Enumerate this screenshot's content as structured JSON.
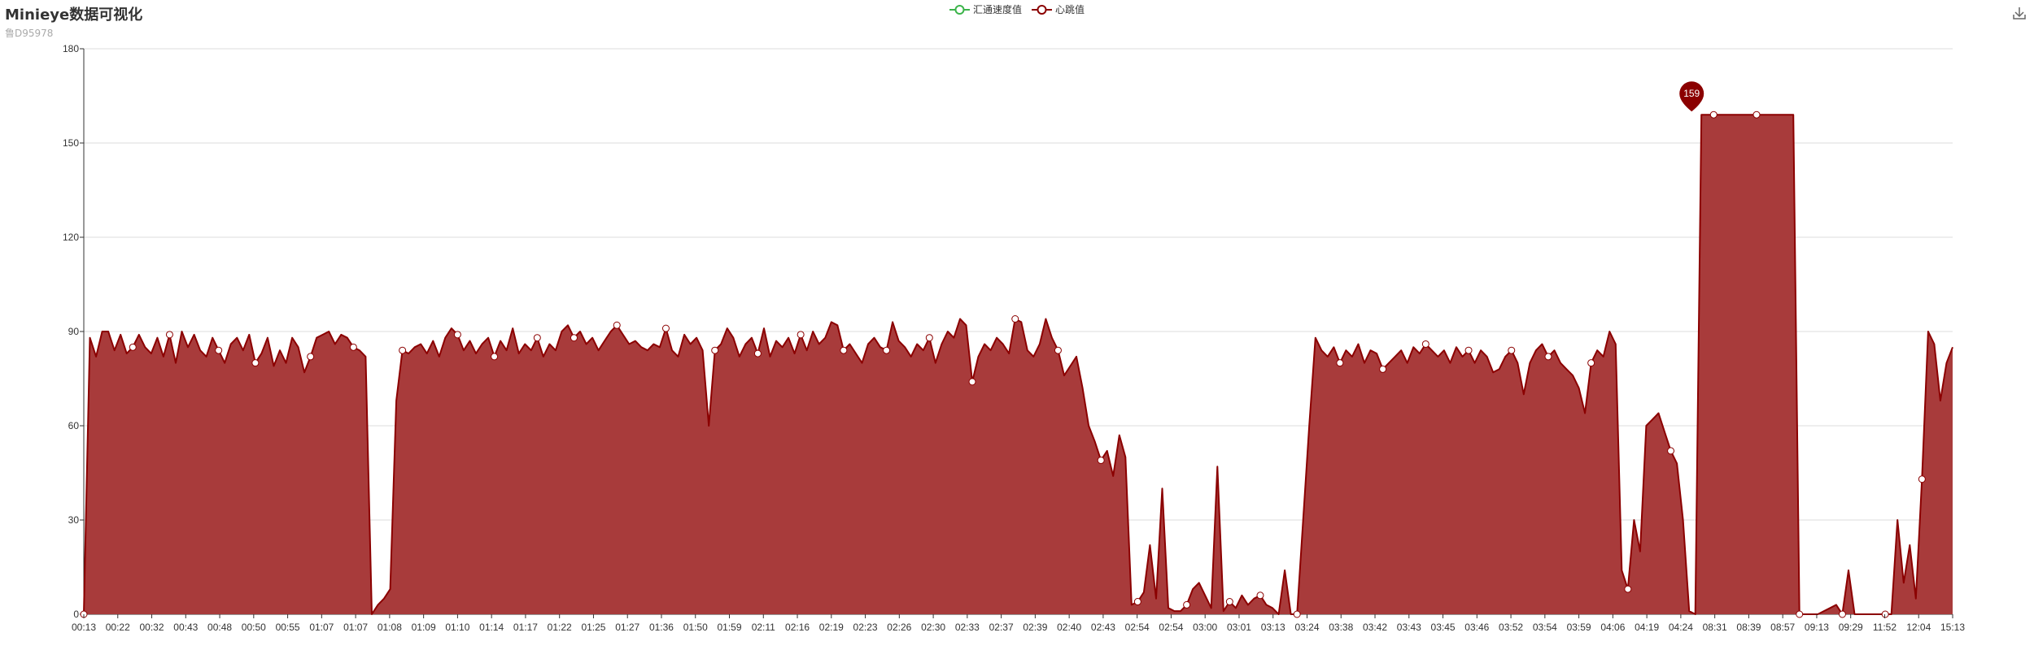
{
  "header": {
    "title": "Minieye数据可视化",
    "subtitle": "鲁D95978"
  },
  "legend": {
    "items": [
      {
        "label": "汇通速度值",
        "color": "#3cb44b"
      },
      {
        "label": "心跳值",
        "color": "#8b0000"
      }
    ]
  },
  "toolbox": {
    "icon": "download-icon"
  },
  "chart_data": {
    "type": "area",
    "title": "Minieye数据可视化",
    "subtitle": "鲁D95978",
    "ylim": [
      0,
      180
    ],
    "yticks": [
      0,
      30,
      60,
      90,
      120,
      150,
      180
    ],
    "xtick_labels": [
      "00:13",
      "00:22",
      "00:32",
      "00:43",
      "00:48",
      "00:50",
      "00:55",
      "01:07",
      "01:07",
      "01:08",
      "01:09",
      "01:10",
      "01:14",
      "01:17",
      "01:22",
      "01:25",
      "01:27",
      "01:36",
      "01:50",
      "01:59",
      "02:11",
      "02:16",
      "02:19",
      "02:23",
      "02:26",
      "02:30",
      "02:33",
      "02:37",
      "02:39",
      "02:40",
      "02:43",
      "02:54",
      "02:54",
      "03:00",
      "03:01",
      "03:13",
      "03:24",
      "03:38",
      "03:42",
      "03:43",
      "03:45",
      "03:46",
      "03:52",
      "03:54",
      "03:59",
      "04:06",
      "04:19",
      "04:24",
      "08:31",
      "08:39",
      "08:57",
      "09:13",
      "09:29",
      "11:52",
      "12:04",
      "15:13"
    ],
    "grid": true,
    "legend_position": "top-center",
    "colors": {
      "fill": "#a83b3b",
      "line": "#8b0000",
      "grid": "#dddddd",
      "axis": "#333333"
    },
    "max_marker": {
      "label": "159",
      "value": 159
    },
    "series": [
      {
        "name": "心跳值",
        "values": [
          0,
          88,
          82,
          90,
          90,
          84,
          89,
          83,
          85,
          89,
          85,
          83,
          88,
          82,
          89,
          80,
          90,
          85,
          89,
          84,
          82,
          88,
          84,
          80,
          86,
          88,
          84,
          89,
          80,
          83,
          88,
          79,
          84,
          80,
          88,
          85,
          77,
          82,
          88,
          89,
          90,
          86,
          89,
          88,
          85,
          84,
          82,
          0,
          3,
          5,
          8,
          68,
          84,
          83,
          85,
          86,
          83,
          87,
          82,
          88,
          91,
          89,
          84,
          87,
          83,
          86,
          88,
          82,
          87,
          84,
          91,
          83,
          86,
          84,
          88,
          82,
          86,
          84,
          90,
          92,
          88,
          90,
          86,
          88,
          84,
          87,
          90,
          92,
          89,
          86,
          87,
          85,
          84,
          86,
          85,
          91,
          84,
          82,
          89,
          86,
          88,
          84,
          60,
          84,
          86,
          91,
          88,
          82,
          86,
          88,
          83,
          91,
          82,
          87,
          85,
          88,
          83,
          89,
          84,
          90,
          86,
          88,
          93,
          92,
          84,
          86,
          83,
          80,
          86,
          88,
          85,
          84,
          93,
          87,
          85,
          82,
          86,
          84,
          88,
          80,
          86,
          90,
          88,
          94,
          92,
          74,
          82,
          86,
          84,
          88,
          86,
          83,
          94,
          93,
          84,
          82,
          86,
          94,
          88,
          84,
          76,
          79,
          82,
          72,
          60,
          55,
          49,
          52,
          44,
          57,
          50,
          3,
          4,
          7,
          22,
          5,
          40,
          2,
          1,
          1,
          3,
          8,
          10,
          6,
          2,
          47,
          1,
          4,
          2,
          6,
          3,
          5,
          6,
          3,
          2,
          0,
          14,
          0,
          0,
          30,
          60,
          88,
          84,
          82,
          85,
          80,
          84,
          82,
          86,
          80,
          84,
          83,
          78,
          80,
          82,
          84,
          80,
          85,
          83,
          86,
          84,
          82,
          84,
          80,
          85,
          82,
          84,
          80,
          84,
          82,
          77,
          78,
          82,
          84,
          80,
          70,
          80,
          84,
          86,
          82,
          84,
          80,
          78,
          76,
          72,
          64,
          80,
          84,
          82,
          90,
          86,
          14,
          8,
          30,
          20,
          60,
          62,
          64,
          58,
          52,
          48,
          30,
          1,
          0,
          159,
          159,
          159,
          159,
          159,
          159,
          159,
          159,
          159,
          159,
          159,
          159,
          159,
          159,
          159,
          159,
          0,
          0,
          0,
          0,
          1,
          2,
          3,
          0,
          14,
          0,
          0,
          0,
          0,
          0,
          0,
          0,
          30,
          10,
          22,
          5,
          43,
          90,
          86,
          68,
          80,
          85
        ]
      }
    ],
    "points_shown_indices": [
      0,
      8,
      14,
      22,
      28,
      37,
      44,
      52,
      61,
      67,
      74,
      80,
      87,
      95,
      103,
      110,
      117,
      124,
      131,
      138,
      145,
      152,
      159,
      166,
      172,
      180,
      187,
      192,
      198,
      205,
      212,
      219,
      226,
      233,
      239,
      246,
      252,
      259,
      266,
      273,
      280,
      287,
      294,
      300,
      306,
      312,
      318,
      325,
      331
    ]
  }
}
